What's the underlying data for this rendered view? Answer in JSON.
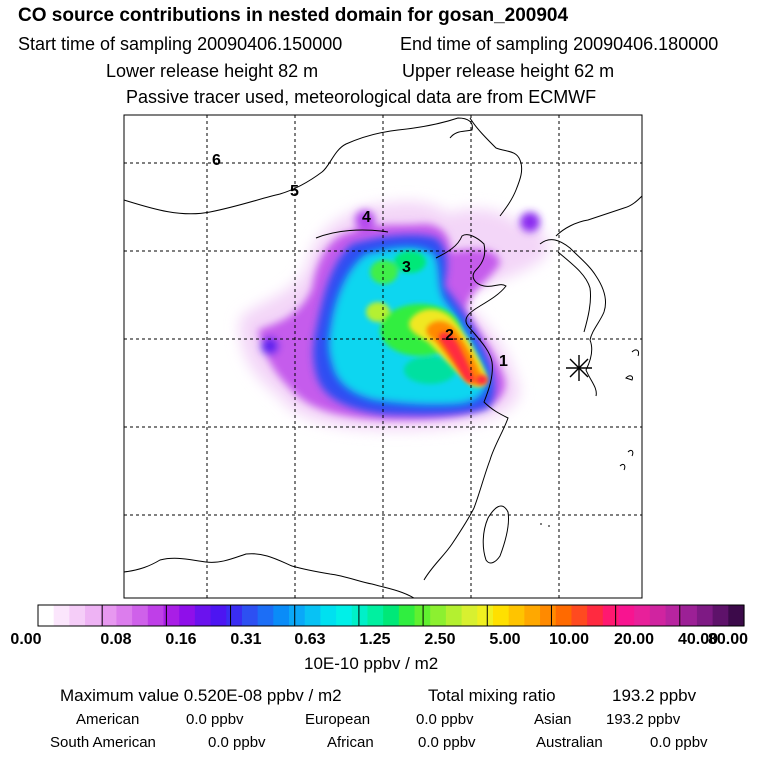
{
  "header": {
    "title": "CO  source contributions in nested domain for gosan_200904",
    "start_time_label": "Start time of sampling 20090406.150000",
    "end_time_label": "End time of sampling 20090406.180000",
    "lower_release": "Lower release height   82 m",
    "upper_release": "Upper release height   62 m",
    "tracer_note": "Passive tracer used, meteorological data are from ECMWF"
  },
  "chart_data": {
    "type": "heatmap",
    "title": "CO  source contributions in nested domain for gosan_200904",
    "colorbar": {
      "unit_label": "10E-10 ppbv / m2",
      "tick_labels": [
        "0.00",
        "0.08",
        "0.16",
        "0.31",
        "0.63",
        "1.25",
        "2.50",
        "5.00",
        "10.00",
        "20.00",
        "40.00",
        "80.00"
      ],
      "colors": [
        "#ffffff",
        "#fbe6fc",
        "#f5cdf8",
        "#eeb3f4",
        "#e798f0",
        "#dc7ded",
        "#cf61ea",
        "#bf3fe8",
        "#a91ee6",
        "#8f0fea",
        "#6b12ee",
        "#4d15f2",
        "#3a2df2",
        "#2d50f2",
        "#1c6ef6",
        "#0a8cf8",
        "#0aa8f8",
        "#08c2f4",
        "#00e0f0",
        "#00f0e8",
        "#00f0c8",
        "#00f0a0",
        "#00e878",
        "#30ee40",
        "#60f030",
        "#8cf030",
        "#b4f030",
        "#d8f030",
        "#f0f020",
        "#ffe000",
        "#ffc400",
        "#ffa800",
        "#ff8a00",
        "#ff6a00",
        "#ff4a20",
        "#ff2a40",
        "#ff1870",
        "#f81490",
        "#e8209a",
        "#d024a0",
        "#b824a0",
        "#9c2096",
        "#7e1a84",
        "#5e126a",
        "#3c0a4a"
      ],
      "range": [
        0.0,
        80.0
      ]
    },
    "receptor_marker": "asterisk",
    "region_labels": [
      "1",
      "2",
      "3",
      "4",
      "5",
      "6"
    ],
    "grid": true
  },
  "stats": {
    "maximum": "Maximum value  0.520E-08 ppbv / m2",
    "total_mixing": "Total mixing ratio",
    "total_value": "193.2 ppbv",
    "american_label": "American",
    "american_value": "0.0 ppbv",
    "european_label": "European",
    "european_value": "0.0 ppbv",
    "asian_label": "Asian",
    "asian_value": "193.2 ppbv",
    "south_american_label": "South American",
    "south_american_value": "0.0 ppbv",
    "african_label": "African",
    "african_value": "0.0 ppbv",
    "australian_label": "Australian",
    "australian_value": "0.0 ppbv"
  }
}
